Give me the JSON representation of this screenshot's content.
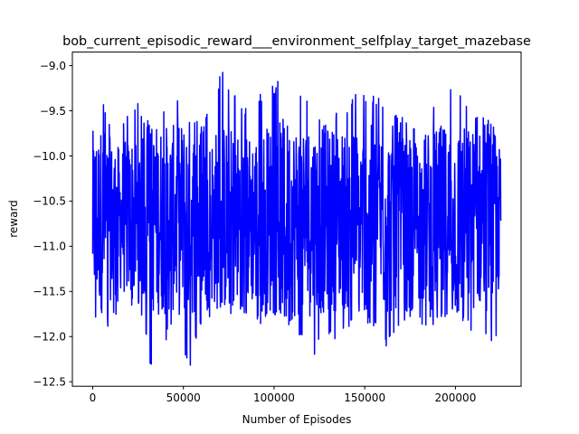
{
  "chart_data": {
    "type": "line",
    "title": "bob_current_episodic_reward___environment_selfplay_target_mazebase",
    "xlabel": "Number of Episodes",
    "ylabel": "reward",
    "xlim": [
      -11200,
      236200
    ],
    "ylim": [
      -12.55,
      -8.85
    ],
    "grid": false,
    "legend": "none",
    "series_color": "#0000ff",
    "x_ticks": [
      {
        "value": 0,
        "label": "0"
      },
      {
        "value": 50000,
        "label": "50000"
      },
      {
        "value": 100000,
        "label": "100000"
      },
      {
        "value": 150000,
        "label": "150000"
      },
      {
        "value": 200000,
        "label": "200000"
      }
    ],
    "y_ticks": [
      {
        "value": -9.0,
        "label": "−9.0"
      },
      {
        "value": -9.5,
        "label": "−9.5"
      },
      {
        "value": -10.0,
        "label": "−10.0"
      },
      {
        "value": -10.5,
        "label": "−10.5"
      },
      {
        "value": -11.0,
        "label": "−11.0"
      },
      {
        "value": -11.5,
        "label": "−11.5"
      },
      {
        "value": -12.0,
        "label": "−12.0"
      },
      {
        "value": -12.5,
        "label": "−12.5"
      }
    ],
    "series": [
      {
        "x": [
          0,
          6000,
          9000,
          15000,
          22000,
          28000,
          32000,
          45000,
          53000,
          61000,
          71000,
          84000,
          98000,
          106000,
          122000,
          135000,
          149000,
          163000,
          174000,
          186000,
          199000,
          212000,
          221000,
          225000
        ],
        "y_max": [
          -9.35,
          -9.35,
          -9.6,
          -9.7,
          -9.3,
          -9.5,
          -9.65,
          -9.3,
          -9.5,
          -9.65,
          -9.05,
          -9.4,
          -9.25,
          -9.05,
          -9.5,
          -9.45,
          -9.25,
          -9.4,
          -9.65,
          -9.4,
          -9.1,
          -9.5,
          -9.6,
          -9.9
        ],
        "y_min": [
          -11.8,
          -12.0,
          -11.9,
          -11.7,
          -11.7,
          -11.8,
          -12.35,
          -11.9,
          -12.4,
          -11.8,
          -11.75,
          -11.75,
          -11.95,
          -11.85,
          -12.2,
          -12.0,
          -11.8,
          -12.15,
          -11.8,
          -11.9,
          -11.8,
          -12.0,
          -12.2,
          -11.8
        ],
        "mean": -10.7
      }
    ]
  }
}
